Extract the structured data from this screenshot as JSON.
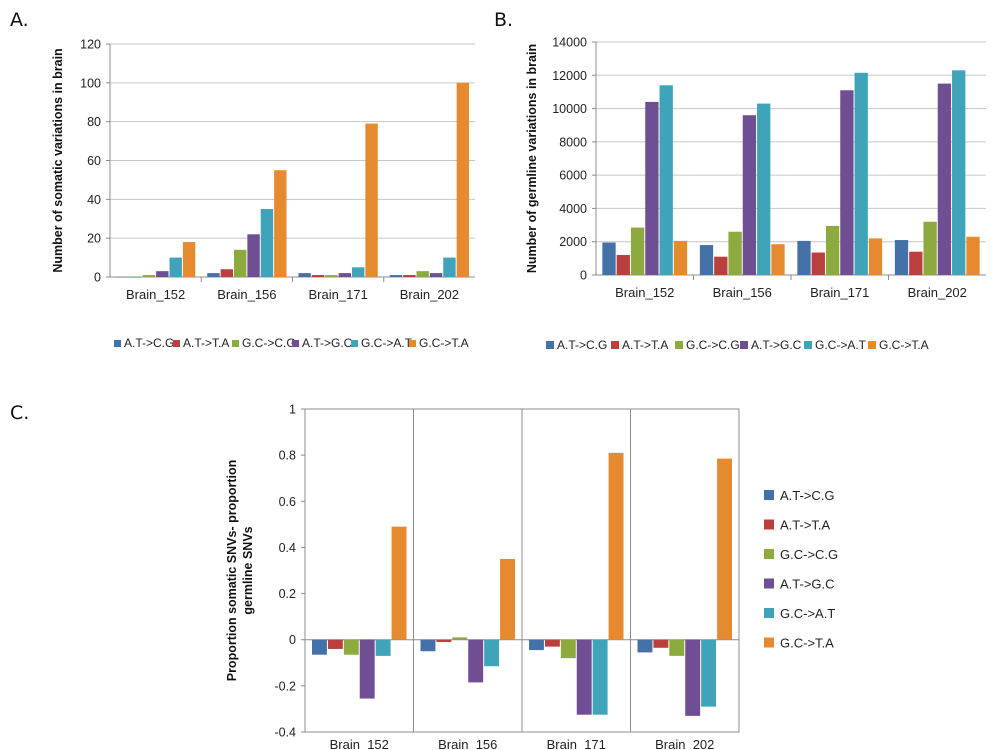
{
  "colors": {
    "A.T->C.G": "#4472a8",
    "A.T->T.A": "#b9403d",
    "G.C->C.G": "#8daa3f",
    "A.T->G.C": "#6f4e93",
    "G.C->A.T": "#3fa3b9",
    "G.C->T.A": "#e58a2e"
  },
  "chart_data": [
    {
      "panel": "A.",
      "type": "bar",
      "title": "",
      "xlabel": "",
      "ylabel": "Number of somatic variations in brain",
      "ylim": [
        0,
        120
      ],
      "yticks": [
        0,
        20,
        40,
        60,
        80,
        100,
        120
      ],
      "grid": true,
      "legend": "bottom",
      "categories": [
        "Brain_152",
        "Brain_156",
        "Brain_171",
        "Brain_202"
      ],
      "series": [
        {
          "name": "A.T->C.G",
          "values": [
            0,
            2,
            2,
            1
          ]
        },
        {
          "name": "A.T->T.A",
          "values": [
            0,
            4,
            1,
            1
          ]
        },
        {
          "name": "G.C->C.G",
          "values": [
            1,
            14,
            1,
            3
          ]
        },
        {
          "name": "A.T->G.C",
          "values": [
            3,
            22,
            2,
            2
          ]
        },
        {
          "name": "G.C->A.T",
          "values": [
            10,
            35,
            5,
            10
          ]
        },
        {
          "name": "G.C->T.A",
          "values": [
            18,
            55,
            79,
            100
          ]
        }
      ]
    },
    {
      "panel": "B.",
      "type": "bar",
      "title": "",
      "xlabel": "",
      "ylabel": "Number of germline variations in brain",
      "ylim": [
        0,
        14000
      ],
      "yticks": [
        0,
        2000,
        4000,
        6000,
        8000,
        10000,
        12000,
        14000
      ],
      "grid": true,
      "legend": "bottom",
      "categories": [
        "Brain_152",
        "Brain_156",
        "Brain_171",
        "Brain_202"
      ],
      "series": [
        {
          "name": "A.T->C.G",
          "values": [
            1950,
            1800,
            2050,
            2100
          ]
        },
        {
          "name": "A.T->T.A",
          "values": [
            1200,
            1100,
            1350,
            1400
          ]
        },
        {
          "name": "G.C->C.G",
          "values": [
            2850,
            2600,
            2950,
            3200
          ]
        },
        {
          "name": "A.T->G.C",
          "values": [
            10400,
            9600,
            11100,
            11500
          ]
        },
        {
          "name": "G.C->A.T",
          "values": [
            11400,
            10300,
            12150,
            12300
          ]
        },
        {
          "name": "G.C->T.A",
          "values": [
            2050,
            1850,
            2200,
            2300
          ]
        }
      ]
    },
    {
      "panel": "C.",
      "type": "bar",
      "title": "",
      "xlabel": "",
      "ylabel": "Proportion somatic SNVs- proportion germline SNVs",
      "ylim": [
        -0.4,
        1
      ],
      "yticks": [
        -0.4,
        -0.2,
        0,
        0.2,
        0.4,
        0.6,
        0.8,
        1
      ],
      "ytick_labels": [
        "-0.4",
        "-0.2",
        "0",
        "0.2",
        "0.4",
        "0.6",
        "0.8",
        "1"
      ],
      "grid": false,
      "legend": "right",
      "categories": [
        "Brain_152",
        "Brain_156",
        "Brain_171",
        "Brain_202"
      ],
      "series": [
        {
          "name": "A.T->C.G",
          "values": [
            -0.065,
            -0.05,
            -0.045,
            -0.055
          ]
        },
        {
          "name": "A.T->T.A",
          "values": [
            -0.04,
            -0.01,
            -0.03,
            -0.035
          ]
        },
        {
          "name": "G.C->C.G",
          "values": [
            -0.065,
            0.01,
            -0.08,
            -0.07
          ]
        },
        {
          "name": "A.T->G.C",
          "values": [
            -0.255,
            -0.185,
            -0.325,
            -0.33
          ]
        },
        {
          "name": "G.C->A.T",
          "values": [
            -0.07,
            -0.115,
            -0.325,
            -0.29
          ]
        },
        {
          "name": "G.C->T.A",
          "values": [
            0.49,
            0.35,
            0.81,
            0.785
          ]
        }
      ]
    }
  ]
}
